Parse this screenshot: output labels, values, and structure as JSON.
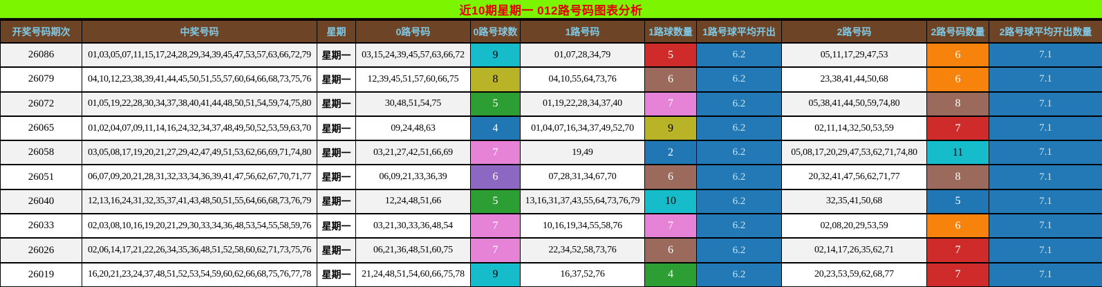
{
  "title": "近10期星期一 012路号码图表分析",
  "colors": {
    "title_bg": "#7BF500",
    "title_text": "#E30000",
    "header_bg": "#6E4426",
    "header_text": "#7FC9E6",
    "avg_bg": "#2379B5",
    "avg_text": "#C9E4F2",
    "cyan": "#17BCCB",
    "olive": "#B9B327",
    "green": "#2D9E33",
    "blue": "#2077B4",
    "pink": "#E783D7",
    "purple": "#8D68C2",
    "brown": "#9C6A5D",
    "red": "#D02B2B",
    "orange": "#F8830C",
    "count_text_light": "#FFFFFF",
    "count_text_dark": "#000000"
  },
  "table": {
    "headers": [
      "开奖号码期次",
      "中奖号码",
      "星期",
      "0路号码",
      "0路号球数",
      "1路号码",
      "1路球数量",
      "1路号球平均开出",
      "2路号码",
      "2路号码数量",
      "2路号球平均开出数量"
    ],
    "rows": [
      {
        "period": "26086",
        "winning": "01,03,05,07,11,15,17,24,28,29,34,39,45,47,53,57,63,66,72,79",
        "week": "星期一",
        "zero_nums": "03,15,24,39,45,57,63,66,72",
        "zero_count": "9",
        "zero_color": "cyan",
        "one_nums": "01,07,28,34,79",
        "one_count": "5",
        "one_color": "red",
        "one_avg": "6.2",
        "two_nums": "05,11,17,29,47,53",
        "two_count": "6",
        "two_color": "orange",
        "two_avg": "7.1"
      },
      {
        "period": "26079",
        "winning": "04,10,12,23,38,39,41,44,45,50,51,55,57,60,64,66,68,73,75,76",
        "week": "星期一",
        "zero_nums": "12,39,45,51,57,60,66,75",
        "zero_count": "8",
        "zero_color": "olive",
        "one_nums": "04,10,55,64,73,76",
        "one_count": "6",
        "one_color": "brown",
        "one_avg": "6.2",
        "two_nums": "23,38,41,44,50,68",
        "two_count": "6",
        "two_color": "orange",
        "two_avg": "7.1"
      },
      {
        "period": "26072",
        "winning": "01,05,19,22,28,30,34,37,38,40,41,44,48,50,51,54,59,74,75,80",
        "week": "星期一",
        "zero_nums": "30,48,51,54,75",
        "zero_count": "5",
        "zero_color": "green",
        "one_nums": "01,19,22,28,34,37,40",
        "one_count": "7",
        "one_color": "pink",
        "one_avg": "6.2",
        "two_nums": "05,38,41,44,50,59,74,80",
        "two_count": "8",
        "two_color": "brown",
        "two_avg": "7.1"
      },
      {
        "period": "26065",
        "winning": "01,02,04,07,09,11,14,16,24,32,34,37,48,49,50,52,53,59,63,70",
        "week": "星期一",
        "zero_nums": "09,24,48,63",
        "zero_count": "4",
        "zero_color": "blue",
        "one_nums": "01,04,07,16,34,37,49,52,70",
        "one_count": "9",
        "one_color": "olive",
        "one_avg": "6.2",
        "two_nums": "02,11,14,32,50,53,59",
        "two_count": "7",
        "two_color": "red",
        "two_avg": "7.1"
      },
      {
        "period": "26058",
        "winning": "03,05,08,17,19,20,21,27,29,42,47,49,51,53,62,66,69,71,74,80",
        "week": "星期一",
        "zero_nums": "03,21,27,42,51,66,69",
        "zero_count": "7",
        "zero_color": "pink",
        "one_nums": "19,49",
        "one_count": "2",
        "one_color": "blue",
        "one_avg": "6.2",
        "two_nums": "05,08,17,20,29,47,53,62,71,74,80",
        "two_count": "11",
        "two_color": "cyan",
        "two_avg": "7.1"
      },
      {
        "period": "26051",
        "winning": "06,07,09,20,21,28,31,32,33,34,36,39,41,47,56,62,67,70,71,77",
        "week": "星期一",
        "zero_nums": "06,09,21,33,36,39",
        "zero_count": "6",
        "zero_color": "purple",
        "one_nums": "07,28,31,34,67,70",
        "one_count": "6",
        "one_color": "brown",
        "one_avg": "6.2",
        "two_nums": "20,32,41,47,56,62,71,77",
        "two_count": "8",
        "two_color": "brown",
        "two_avg": "7.1"
      },
      {
        "period": "26040",
        "winning": "12,13,16,24,31,32,35,37,41,43,48,50,51,55,64,66,68,73,76,79",
        "week": "星期一",
        "zero_nums": "12,24,48,51,66",
        "zero_count": "5",
        "zero_color": "green",
        "one_nums": "13,16,31,37,43,55,64,73,76,79",
        "one_count": "10",
        "one_color": "cyan",
        "one_avg": "6.2",
        "two_nums": "32,35,41,50,68",
        "two_count": "5",
        "two_color": "blue",
        "two_avg": "7.1"
      },
      {
        "period": "26033",
        "winning": "02,03,08,10,16,19,20,21,29,30,33,34,36,48,53,54,55,58,59,76",
        "week": "星期一",
        "zero_nums": "03,21,30,33,36,48,54",
        "zero_count": "7",
        "zero_color": "pink",
        "one_nums": "10,16,19,34,55,58,76",
        "one_count": "7",
        "one_color": "pink",
        "one_avg": "6.2",
        "two_nums": "02,08,20,29,53,59",
        "two_count": "6",
        "two_color": "orange",
        "two_avg": "7.1"
      },
      {
        "period": "26026",
        "winning": "02,06,14,17,21,22,26,34,35,36,48,51,52,58,60,62,71,73,75,76",
        "week": "星期一",
        "zero_nums": "06,21,36,48,51,60,75",
        "zero_count": "7",
        "zero_color": "pink",
        "one_nums": "22,34,52,58,73,76",
        "one_count": "6",
        "one_color": "brown",
        "one_avg": "6.2",
        "two_nums": "02,14,17,26,35,62,71",
        "two_count": "7",
        "two_color": "red",
        "two_avg": "7.1"
      },
      {
        "period": "26019",
        "winning": "16,20,21,23,24,37,48,51,52,53,54,59,60,62,66,68,75,76,77,78",
        "week": "星期一",
        "zero_nums": "21,24,48,51,54,60,66,75,78",
        "zero_count": "9",
        "zero_color": "cyan",
        "one_nums": "16,37,52,76",
        "one_count": "4",
        "one_color": "green",
        "one_avg": "6.2",
        "two_nums": "20,23,53,59,62,68,77",
        "two_count": "7",
        "two_color": "red",
        "two_avg": "7.1"
      }
    ]
  }
}
